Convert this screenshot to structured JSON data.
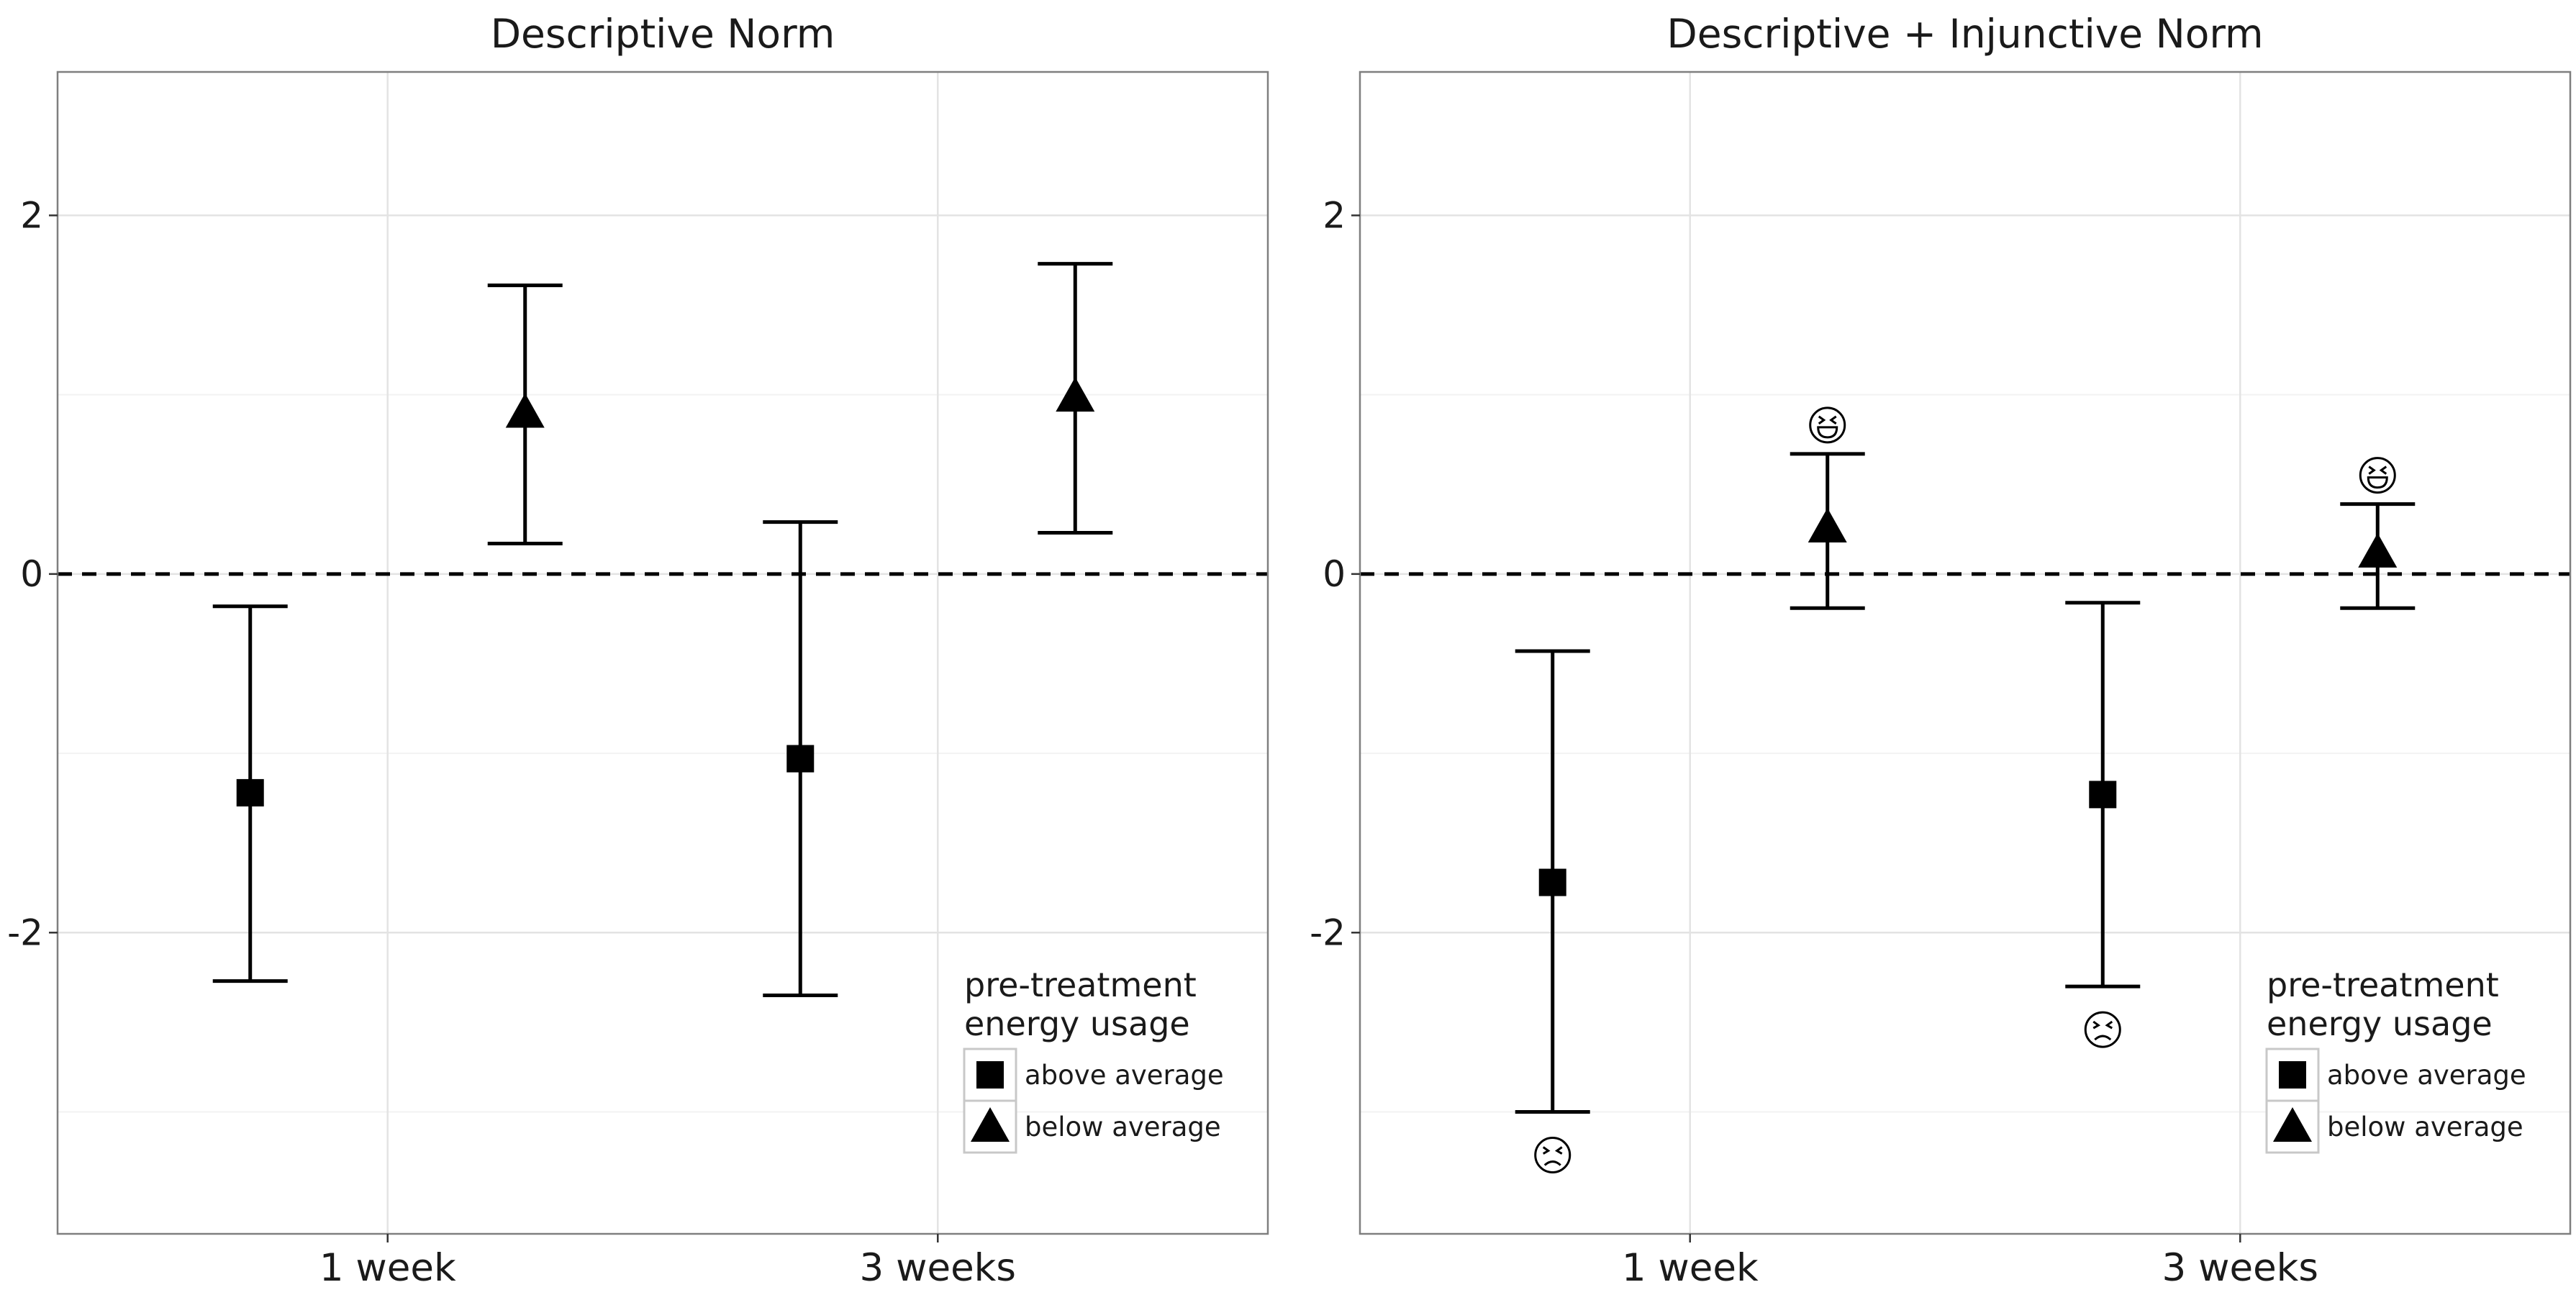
{
  "chart_data": [
    {
      "type": "errorbar",
      "title": "Descriptive Norm",
      "xlabel": "",
      "ylabel": "",
      "categories": [
        "1 week",
        "3 weeks"
      ],
      "ylim": [
        -3.68,
        2.8
      ],
      "y_ticks": [
        "2",
        "0",
        "-2"
      ],
      "y_tick_values": [
        2,
        0,
        -2
      ],
      "reference_line": 0,
      "grid": true,
      "series": [
        {
          "name": "above average",
          "marker": "square",
          "points": [
            {
              "x": "1 week",
              "y": -1.22,
              "lo": -2.27,
              "hi": -0.18
            },
            {
              "x": "3 weeks",
              "y": -1.03,
              "lo": -2.35,
              "hi": 0.29
            }
          ]
        },
        {
          "name": "below average",
          "marker": "triangle",
          "points": [
            {
              "x": "1 week",
              "y": 0.9,
              "lo": 0.17,
              "hi": 1.61
            },
            {
              "x": "3 weeks",
              "y": 0.99,
              "lo": 0.23,
              "hi": 1.73
            }
          ]
        }
      ],
      "emoji": [],
      "legend": {
        "title_lines": [
          "pre-treatment",
          "energy usage"
        ],
        "placement": "bottom-right",
        "entries": [
          "above average",
          "below average"
        ]
      }
    },
    {
      "type": "errorbar",
      "title": "Descriptive + Injunctive Norm",
      "xlabel": "",
      "ylabel": "",
      "categories": [
        "1 week",
        "3 weeks"
      ],
      "ylim": [
        -3.68,
        2.8
      ],
      "y_ticks": [
        "2",
        "0",
        "-2"
      ],
      "y_tick_values": [
        2,
        0,
        -2
      ],
      "reference_line": 0,
      "grid": true,
      "series": [
        {
          "name": "above average",
          "marker": "square",
          "points": [
            {
              "x": "1 week",
              "y": -1.72,
              "lo": -3.0,
              "hi": -0.43
            },
            {
              "x": "3 weeks",
              "y": -1.23,
              "lo": -2.3,
              "hi": -0.16
            }
          ]
        },
        {
          "name": "below average",
          "marker": "triangle",
          "points": [
            {
              "x": "1 week",
              "y": 0.26,
              "lo": -0.19,
              "hi": 0.67
            },
            {
              "x": "3 weeks",
              "y": 0.12,
              "lo": -0.19,
              "hi": 0.39
            }
          ]
        }
      ],
      "emoji": [
        {
          "x": "1 week",
          "series": "above average",
          "position": "below",
          "glyph": "😣"
        },
        {
          "x": "1 week",
          "series": "below average",
          "position": "above",
          "glyph": "😆"
        },
        {
          "x": "3 weeks",
          "series": "above average",
          "position": "below",
          "glyph": "😣"
        },
        {
          "x": "3 weeks",
          "series": "below average",
          "position": "above",
          "glyph": "😆"
        }
      ],
      "legend": {
        "title_lines": [
          "pre-treatment",
          "energy usage"
        ],
        "placement": "bottom-right",
        "entries": [
          "above average",
          "below average"
        ]
      }
    }
  ]
}
